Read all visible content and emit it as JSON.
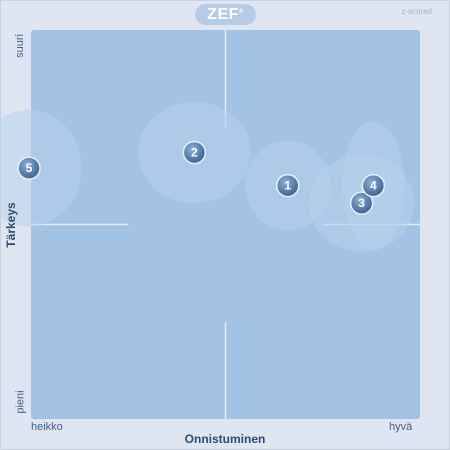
{
  "logo": {
    "text": "ZEF",
    "mark": "®"
  },
  "scale_note": "z-scored",
  "chart_data": {
    "type": "scatter",
    "xlabel": "Onnistuminen",
    "ylabel": "Tärkeys",
    "x_min_label": "heikko",
    "x_max_label": "hyvä",
    "y_min_label": "pieni",
    "y_max_label": "suuri",
    "xlim": [
      -1,
      1
    ],
    "ylim": [
      -1,
      1
    ],
    "grid": "center-cross",
    "colors": {
      "plot_bg": "#a2c3e4",
      "ellipse": "#b7d2ec",
      "marker": "#3b6293",
      "marker_highlight": "#8db0d6",
      "crosshair": "#e4edf7"
    },
    "points": [
      {
        "label": "1",
        "x": 0.32,
        "y": 0.2,
        "rx": 0.22,
        "ry": 0.23
      },
      {
        "label": "2",
        "x": -0.16,
        "y": 0.37,
        "rx": 0.29,
        "ry": 0.26
      },
      {
        "label": "3",
        "x": 0.7,
        "y": 0.11,
        "rx": 0.27,
        "ry": 0.25
      },
      {
        "label": "4",
        "x": 0.76,
        "y": 0.2,
        "rx": 0.16,
        "ry": 0.33
      },
      {
        "label": "5",
        "x": -1.01,
        "y": 0.29,
        "rx": 0.27,
        "ry": 0.3
      }
    ]
  }
}
